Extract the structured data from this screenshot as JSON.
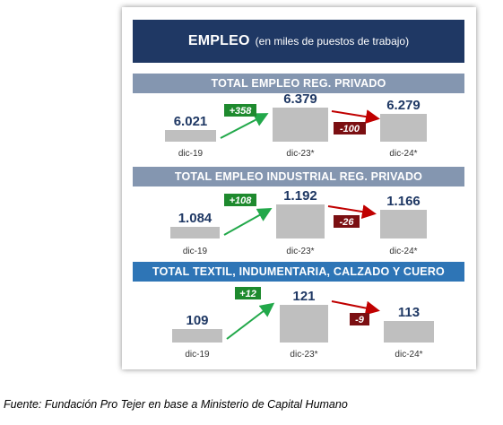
{
  "title": {
    "main": "EMPLEO",
    "sub": "(en miles de puestos de trabajo)"
  },
  "colors": {
    "title_bg": "#1f3864",
    "header_grey": "#8496b0",
    "header_blue": "#2e75b6",
    "bar": "#bfbfbf",
    "value_text": "#1f3864",
    "up_arrow": "#22a84a",
    "down_arrow": "#c00000",
    "up_badge": "#1e8a2e",
    "down_badge": "#7b0f12"
  },
  "chart_data": [
    {
      "type": "bar",
      "title": "TOTAL EMPLEO REG. PRIVADO",
      "header_style": "grey",
      "categories": [
        "dic-19",
        "dic-23*",
        "dic-24*"
      ],
      "values": [
        6021,
        6379,
        6279
      ],
      "value_labels": [
        "6.021",
        "6.379",
        "6.279"
      ],
      "changes": [
        {
          "label": "+358",
          "direction": "up"
        },
        {
          "label": "-100",
          "direction": "down"
        }
      ]
    },
    {
      "type": "bar",
      "title": "TOTAL EMPLEO INDUSTRIAL REG. PRIVADO",
      "header_style": "grey",
      "categories": [
        "dic-19",
        "dic-23*",
        "dic-24*"
      ],
      "values": [
        1084,
        1192,
        1166
      ],
      "value_labels": [
        "1.084",
        "1.192",
        "1.166"
      ],
      "changes": [
        {
          "label": "+108",
          "direction": "up"
        },
        {
          "label": "-26",
          "direction": "down"
        }
      ]
    },
    {
      "type": "bar",
      "title": "TOTAL TEXTIL, INDUMENTARIA, CALZADO Y CUERO",
      "header_style": "blue",
      "categories": [
        "dic-19",
        "dic-23*",
        "dic-24*"
      ],
      "values": [
        109,
        121,
        113
      ],
      "value_labels": [
        "109",
        "121",
        "113"
      ],
      "changes": [
        {
          "label": "+12",
          "direction": "up"
        },
        {
          "label": "-9",
          "direction": "down"
        }
      ]
    }
  ],
  "footnote": "Fuente: Fundación Pro Tejer en base a Ministerio de Capital Humano"
}
